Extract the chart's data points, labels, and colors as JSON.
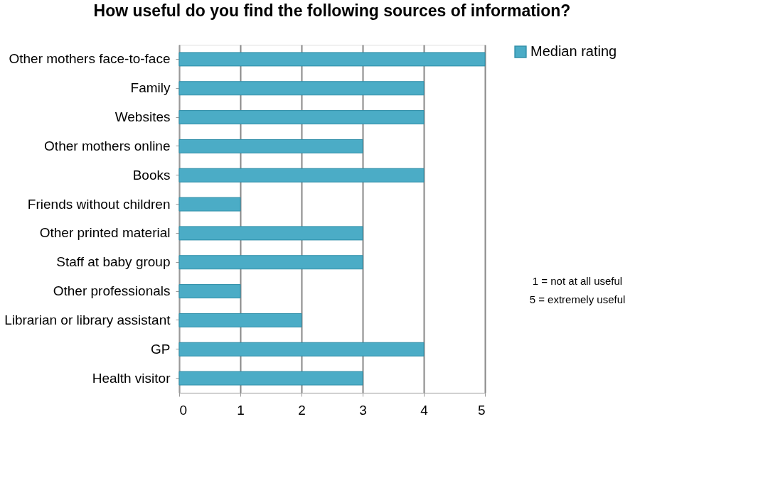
{
  "chart_data": {
    "type": "bar",
    "orientation": "horizontal",
    "title": "How useful do you find the following sources of information?",
    "categories": [
      "Other mothers face-to-face",
      "Family",
      "Websites",
      "Other mothers online",
      "Books",
      "Friends without children",
      "Other printed material",
      "Staff at baby group",
      "Other professionals",
      "Librarian or library assistant",
      "GP",
      "Health visitor"
    ],
    "series": [
      {
        "name": "Median rating",
        "color": "#4bacc6",
        "values": [
          5,
          4,
          4,
          3,
          4,
          1,
          3,
          3,
          1,
          2,
          4,
          3
        ]
      }
    ],
    "xlim": [
      0,
      5
    ],
    "xticks": [
      0,
      1,
      2,
      3,
      4,
      5
    ],
    "grid": "x",
    "legend": "right",
    "annotations": [
      "1 = not at all useful",
      "5 = extremely useful"
    ]
  }
}
